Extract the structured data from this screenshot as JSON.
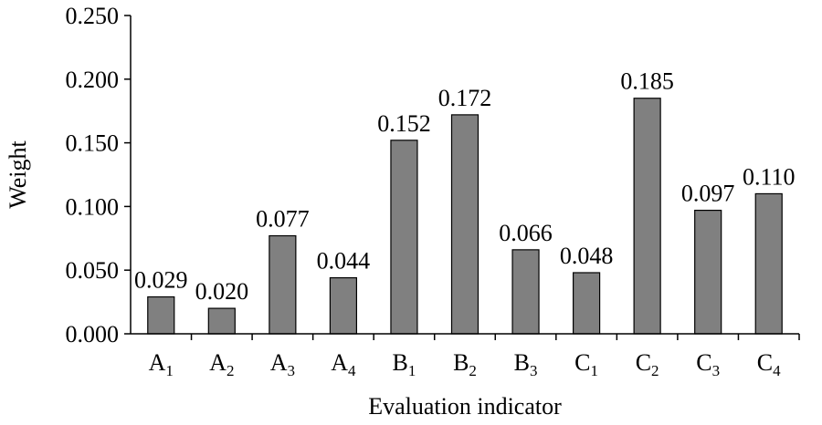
{
  "chart_data": {
    "type": "bar",
    "categories": [
      {
        "base": "A",
        "sub": "1"
      },
      {
        "base": "A",
        "sub": "2"
      },
      {
        "base": "A",
        "sub": "3"
      },
      {
        "base": "A",
        "sub": "4"
      },
      {
        "base": "B",
        "sub": "1"
      },
      {
        "base": "B",
        "sub": "2"
      },
      {
        "base": "B",
        "sub": "3"
      },
      {
        "base": "C",
        "sub": "1"
      },
      {
        "base": "C",
        "sub": "2"
      },
      {
        "base": "C",
        "sub": "3"
      },
      {
        "base": "C",
        "sub": "4"
      }
    ],
    "values": [
      0.029,
      0.02,
      0.077,
      0.044,
      0.152,
      0.172,
      0.066,
      0.048,
      0.185,
      0.097,
      0.11
    ],
    "data_labels": [
      "0.029",
      "0.020",
      "0.077",
      "0.044",
      "0.152",
      "0.172",
      "0.066",
      "0.048",
      "0.185",
      "0.097",
      "0.110"
    ],
    "xlabel": "Evaluation indicator",
    "ylabel": "Weight",
    "ylim": [
      0,
      0.25
    ],
    "yticks": [
      0,
      0.05,
      0.1,
      0.15,
      0.2,
      0.25
    ],
    "ytick_labels": [
      "0.000",
      "0.050",
      "0.100",
      "0.150",
      "0.200",
      "0.250"
    ],
    "bar_color": "#808080",
    "grid": false,
    "legend": "none"
  }
}
